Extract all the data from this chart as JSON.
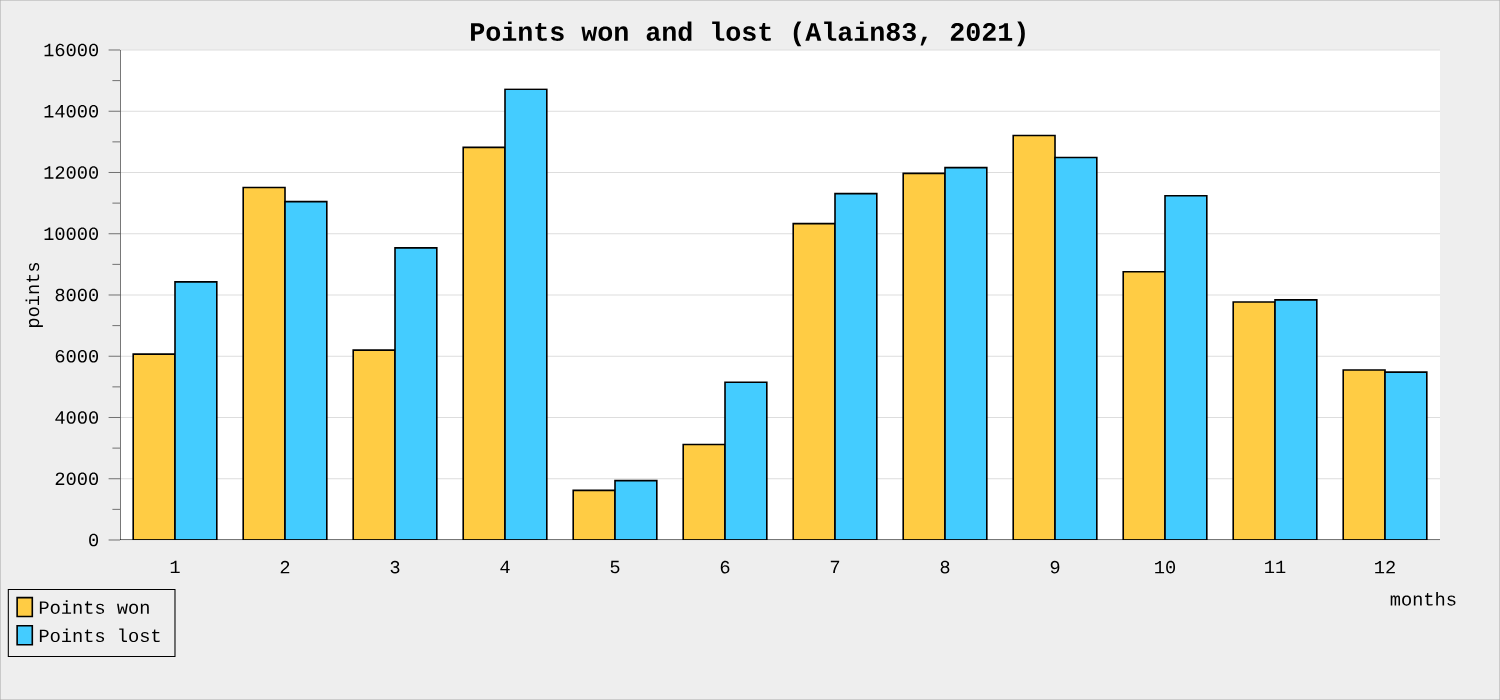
{
  "chart_data": {
    "type": "bar",
    "title": "Points won and lost (Alain83, 2021)",
    "xlabel": "months",
    "ylabel": "points",
    "categories": [
      "1",
      "2",
      "3",
      "4",
      "5",
      "6",
      "7",
      "8",
      "9",
      "10",
      "11",
      "12"
    ],
    "series": [
      {
        "name": "Points won",
        "color": "#ffcc44",
        "values": [
          6070,
          11510,
          6200,
          12820,
          1620,
          3120,
          10330,
          11970,
          13210,
          8760,
          7770,
          5550
        ]
      },
      {
        "name": "Points lost",
        "color": "#44ccff",
        "values": [
          8430,
          11050,
          9540,
          14720,
          1940,
          5150,
          11310,
          12160,
          12490,
          11240,
          7840,
          5480
        ]
      }
    ],
    "ylim": [
      0,
      16000
    ],
    "yticks": [
      0,
      2000,
      4000,
      6000,
      8000,
      10000,
      12000,
      14000,
      16000
    ],
    "grid": "y",
    "legend": "bottom left"
  }
}
